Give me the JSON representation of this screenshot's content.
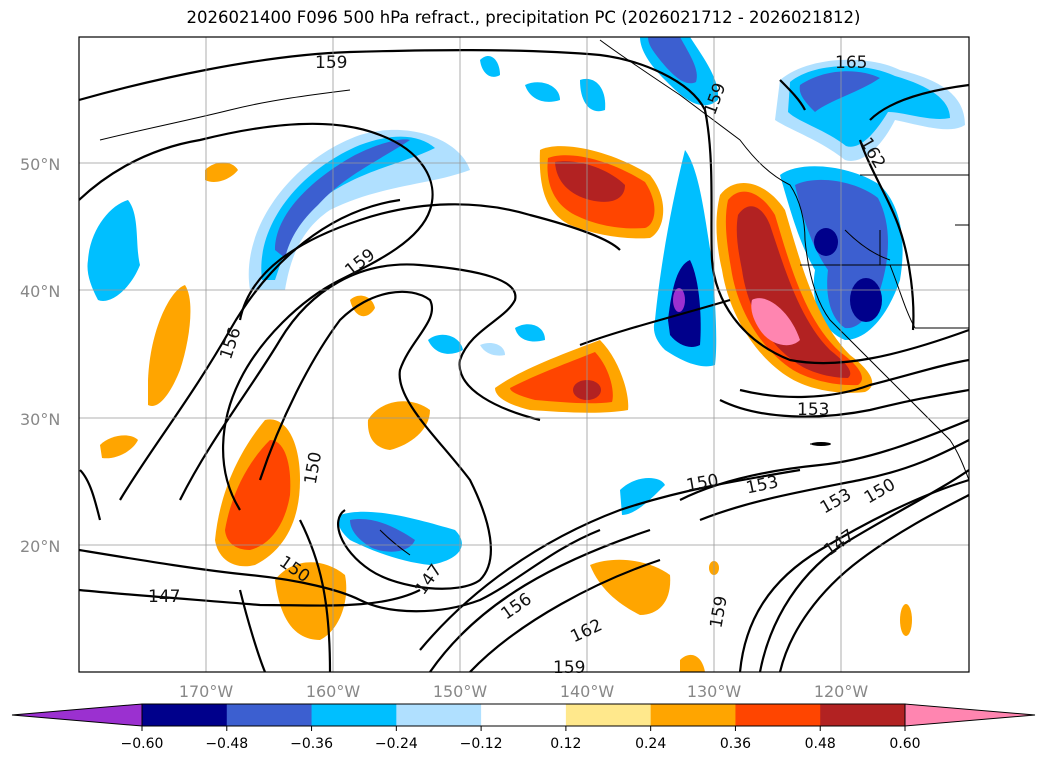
{
  "title": "2026021400 F096 500 hPa refract., precipitation PC (2026021712 - 2026021812)",
  "lat_labels": [
    "50°N",
    "40°N",
    "30°N",
    "20°N"
  ],
  "lon_labels": [
    "170°W",
    "160°W",
    "150°W",
    "140°W",
    "130°W",
    "120°W"
  ],
  "colorbar": {
    "ticks": [
      "−0.60",
      "−0.48",
      "−0.36",
      "−0.24",
      "−0.12",
      "0.12",
      "0.24",
      "0.36",
      "0.48",
      "0.60"
    ],
    "colors": [
      "#9b30d0",
      "#00008b",
      "#3c5fd0",
      "#00bfff",
      "#b0e0ff",
      "#ffffff",
      "#ffe88c",
      "#ffa500",
      "#ff4500",
      "#b22222",
      "#ff85b0"
    ]
  },
  "contour_labels": [
    "159",
    "165",
    "159",
    "162",
    "159",
    "156",
    "150",
    "150",
    "147",
    "147",
    "153",
    "150",
    "153",
    "153",
    "150",
    "147",
    "156",
    "162",
    "159",
    "159"
  ]
}
